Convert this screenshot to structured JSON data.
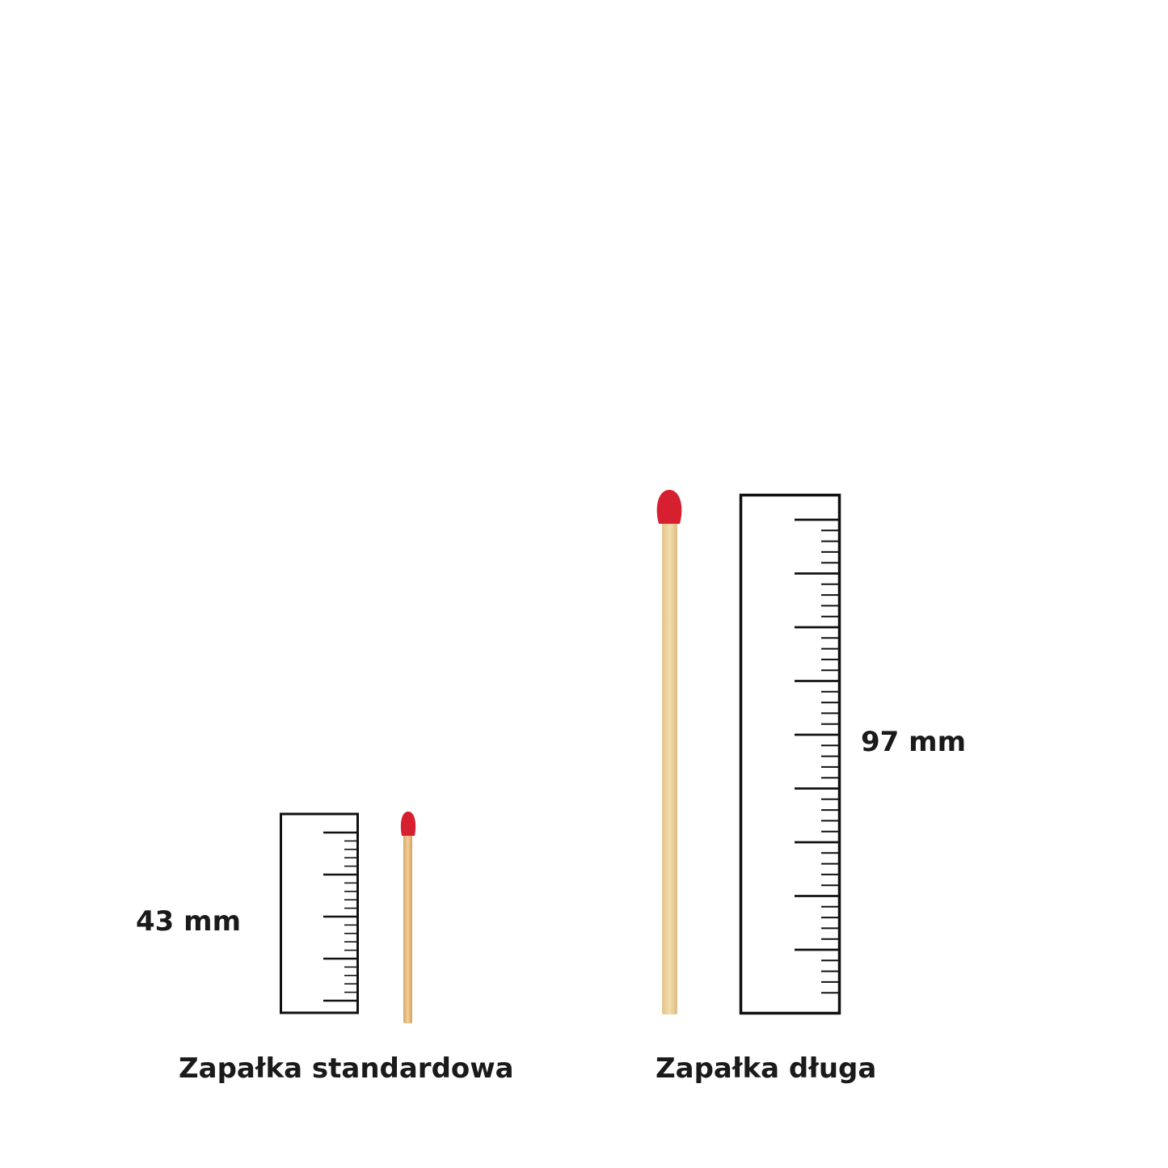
{
  "items": [
    {
      "caption": "Zapałka standardowa",
      "length": "43 mm"
    },
    {
      "caption": "Zapałka długa",
      "length": "97 mm"
    }
  ],
  "colors": {
    "match_head": "#d61f2f",
    "match_stick": "#e8c48a",
    "ruler": "#111111",
    "text": "#1a1a1a"
  }
}
